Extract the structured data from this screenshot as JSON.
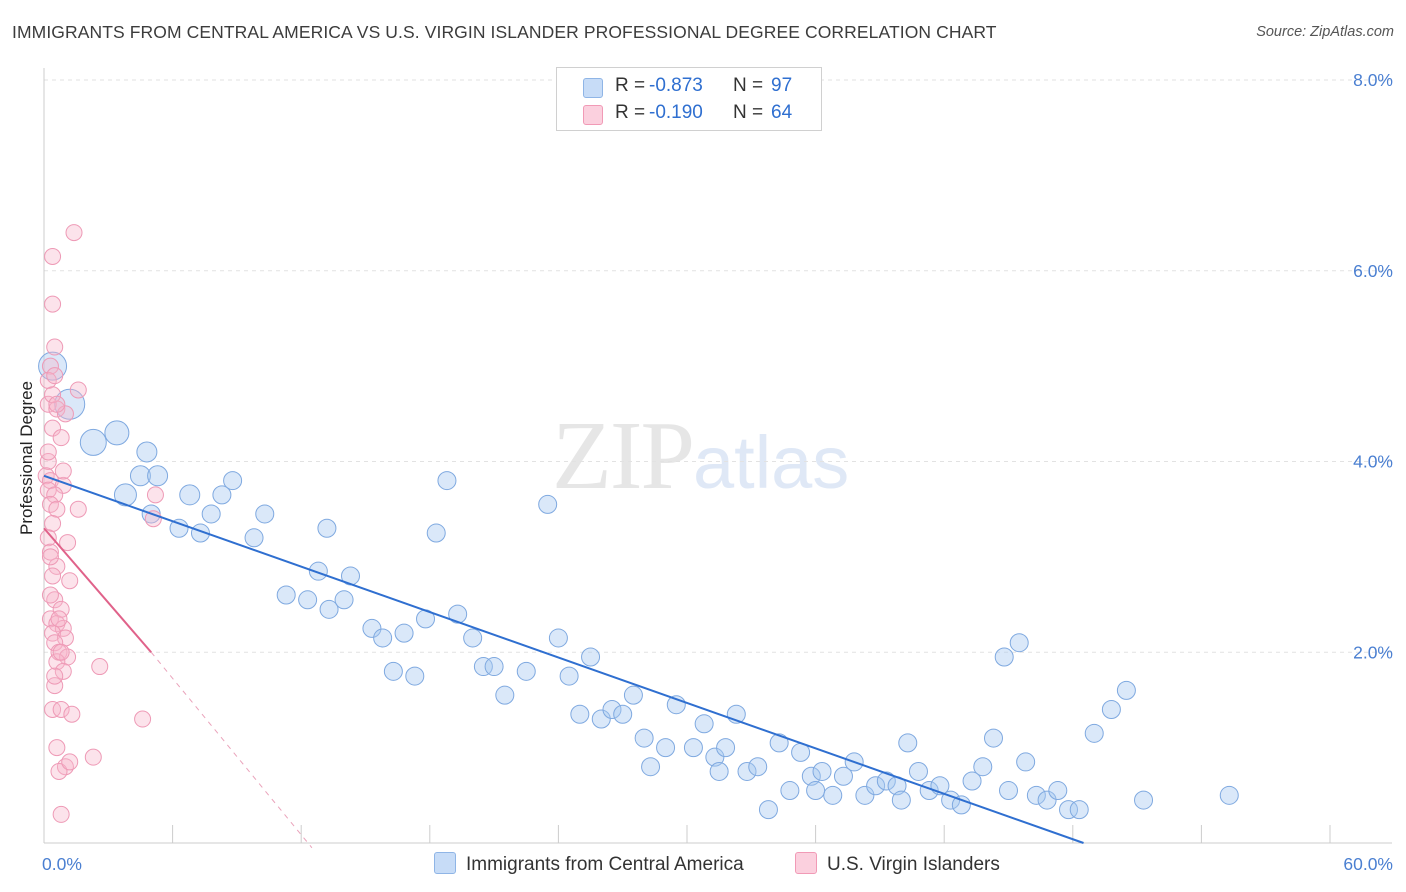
{
  "header": {
    "title": "IMMIGRANTS FROM CENTRAL AMERICA VS U.S. VIRGIN ISLANDER PROFESSIONAL DEGREE CORRELATION CHART",
    "source": "Source: ZipAtlas.com"
  },
  "watermark": {
    "zip": "ZIP",
    "atlas": "atlas"
  },
  "legend": {
    "rows": [
      {
        "r_label": "R =",
        "r_value": "-0.873",
        "n_label": "N =",
        "n_value": "97",
        "color": "#a8c8f0"
      },
      {
        "r_label": "R =",
        "r_value": "-0.190",
        "n_label": "N =",
        "n_value": "64",
        "color": "#f7b6cb"
      }
    ]
  },
  "bottom_legend": {
    "series1": "Immigrants from Central America",
    "series2": "U.S. Virgin Islanders"
  },
  "chart_data": {
    "type": "scatter",
    "title": "IMMIGRANTS FROM CENTRAL AMERICA VS U.S. VIRGIN ISLANDER PROFESSIONAL DEGREE CORRELATION CHART",
    "xlabel": "",
    "ylabel": "Professional Degree",
    "xlim": [
      0,
      60
    ],
    "ylim": [
      0,
      8.0
    ],
    "x_tick_labels": [
      "0.0%",
      "60.0%"
    ],
    "y_tick_labels": [
      "2.0%",
      "4.0%",
      "6.0%",
      "8.0%"
    ],
    "y_ticks": [
      2,
      4,
      6,
      8
    ],
    "grid": true,
    "legend_position": "top-center",
    "colors": {
      "series1": "#a8c8f0",
      "series1_line": "#2f6fd0",
      "series2": "#f7b6cb",
      "series2_line": "#e0628a"
    },
    "series": [
      {
        "name": "Immigrants from Central America",
        "r": -0.873,
        "n": 97,
        "trend": {
          "x0": 0,
          "y0": 3.85,
          "x1": 48.5,
          "y1": 0.0
        },
        "points": [
          [
            0.4,
            5.0,
            14
          ],
          [
            1.2,
            4.6,
            15
          ],
          [
            2.3,
            4.2,
            13
          ],
          [
            3.4,
            4.3,
            12
          ],
          [
            4.8,
            4.1,
            10
          ],
          [
            3.8,
            3.65,
            11
          ],
          [
            4.5,
            3.85,
            10
          ],
          [
            5.3,
            3.85,
            10
          ],
          [
            5.0,
            3.45,
            9
          ],
          [
            6.3,
            3.3,
            9
          ],
          [
            6.8,
            3.65,
            10
          ],
          [
            7.3,
            3.25,
            9
          ],
          [
            7.8,
            3.45,
            9
          ],
          [
            8.3,
            3.65,
            9
          ],
          [
            8.8,
            3.8,
            9
          ],
          [
            9.8,
            3.2,
            9
          ],
          [
            10.3,
            3.45,
            9
          ],
          [
            11.3,
            2.6,
            9
          ],
          [
            12.3,
            2.55,
            9
          ],
          [
            12.8,
            2.85,
            9
          ],
          [
            13.3,
            2.45,
            9
          ],
          [
            14.0,
            2.55,
            9
          ],
          [
            14.3,
            2.8,
            9
          ],
          [
            15.3,
            2.25,
            9
          ],
          [
            15.8,
            2.15,
            9
          ],
          [
            13.2,
            3.3,
            9
          ],
          [
            16.3,
            1.8,
            9
          ],
          [
            16.8,
            2.2,
            9
          ],
          [
            17.8,
            2.35,
            9
          ],
          [
            17.3,
            1.75,
            9
          ],
          [
            18.3,
            3.25,
            9
          ],
          [
            19.3,
            2.4,
            9
          ],
          [
            18.8,
            3.8,
            9
          ],
          [
            20.0,
            2.15,
            9
          ],
          [
            20.5,
            1.85,
            9
          ],
          [
            21.0,
            1.85,
            9
          ],
          [
            21.5,
            1.55,
            9
          ],
          [
            22.5,
            1.8,
            9
          ],
          [
            23.5,
            3.55,
            9
          ],
          [
            24.0,
            2.15,
            9
          ],
          [
            24.5,
            1.75,
            9
          ],
          [
            25.0,
            1.35,
            9
          ],
          [
            25.5,
            1.95,
            9
          ],
          [
            26.0,
            1.3,
            9
          ],
          [
            26.5,
            1.4,
            9
          ],
          [
            27.0,
            1.35,
            9
          ],
          [
            27.5,
            1.55,
            9
          ],
          [
            28.0,
            1.1,
            9
          ],
          [
            28.3,
            0.8,
            9
          ],
          [
            29.0,
            1.0,
            9
          ],
          [
            29.5,
            1.45,
            9
          ],
          [
            30.3,
            1.0,
            9
          ],
          [
            30.8,
            1.25,
            9
          ],
          [
            31.3,
            0.9,
            9
          ],
          [
            31.8,
            1.0,
            9
          ],
          [
            32.3,
            1.35,
            9
          ],
          [
            32.8,
            0.75,
            9
          ],
          [
            33.3,
            0.8,
            9
          ],
          [
            33.8,
            0.35,
            9
          ],
          [
            34.3,
            1.05,
            9
          ],
          [
            34.8,
            0.55,
            9
          ],
          [
            35.3,
            0.95,
            9
          ],
          [
            35.8,
            0.7,
            9
          ],
          [
            36.3,
            0.75,
            9
          ],
          [
            36.8,
            0.5,
            9
          ],
          [
            37.3,
            0.7,
            9
          ],
          [
            37.8,
            0.85,
            9
          ],
          [
            38.3,
            0.5,
            9
          ],
          [
            38.8,
            0.6,
            9
          ],
          [
            39.3,
            0.65,
            9
          ],
          [
            39.8,
            0.6,
            9
          ],
          [
            40.3,
            1.05,
            9
          ],
          [
            40.8,
            0.75,
            9
          ],
          [
            41.3,
            0.55,
            9
          ],
          [
            41.8,
            0.6,
            9
          ],
          [
            42.3,
            0.45,
            9
          ],
          [
            42.8,
            0.4,
            9
          ],
          [
            43.3,
            0.65,
            9
          ],
          [
            43.8,
            0.8,
            9
          ],
          [
            44.3,
            1.1,
            9
          ],
          [
            44.8,
            1.95,
            9
          ],
          [
            45.5,
            2.1,
            9
          ],
          [
            45.8,
            0.85,
            9
          ],
          [
            46.3,
            0.5,
            9
          ],
          [
            46.8,
            0.45,
            9
          ],
          [
            47.3,
            0.55,
            9
          ],
          [
            47.8,
            0.35,
            9
          ],
          [
            48.3,
            0.35,
            9
          ],
          [
            49.0,
            1.15,
            9
          ],
          [
            49.8,
            1.4,
            9
          ],
          [
            50.5,
            1.6,
            9
          ],
          [
            51.3,
            0.45,
            9
          ],
          [
            55.3,
            0.5,
            9
          ],
          [
            45.0,
            0.55,
            9
          ],
          [
            40.0,
            0.45,
            9
          ],
          [
            36.0,
            0.55,
            9
          ],
          [
            31.5,
            0.75,
            9
          ]
        ]
      },
      {
        "name": "U.S. Virgin Islanders",
        "r": -0.19,
        "n": 64,
        "trend": {
          "x0": 0,
          "y0": 3.3,
          "x1": 5.0,
          "y1": 2.0,
          "dash_x1": 12.5,
          "dash_y1": -0.05
        },
        "points": [
          [
            1.4,
            6.4,
            8
          ],
          [
            0.4,
            6.15,
            8
          ],
          [
            0.4,
            5.65,
            8
          ],
          [
            0.5,
            5.2,
            8
          ],
          [
            0.3,
            5.0,
            8
          ],
          [
            0.2,
            4.85,
            8
          ],
          [
            0.5,
            4.9,
            8
          ],
          [
            1.6,
            4.75,
            8
          ],
          [
            0.2,
            4.6,
            8
          ],
          [
            0.6,
            4.55,
            8
          ],
          [
            1.0,
            4.5,
            8
          ],
          [
            0.4,
            4.35,
            8
          ],
          [
            0.8,
            4.25,
            8
          ],
          [
            0.2,
            4.0,
            8
          ],
          [
            0.1,
            3.85,
            8
          ],
          [
            0.3,
            3.8,
            8
          ],
          [
            0.9,
            3.75,
            8
          ],
          [
            0.2,
            3.7,
            8
          ],
          [
            0.5,
            3.65,
            8
          ],
          [
            5.2,
            3.65,
            8
          ],
          [
            0.3,
            3.55,
            8
          ],
          [
            0.6,
            3.5,
            8
          ],
          [
            1.6,
            3.5,
            8
          ],
          [
            5.1,
            3.4,
            8
          ],
          [
            0.4,
            3.35,
            8
          ],
          [
            0.2,
            3.2,
            8
          ],
          [
            1.1,
            3.15,
            8
          ],
          [
            0.3,
            3.05,
            8
          ],
          [
            0.6,
            2.9,
            8
          ],
          [
            0.4,
            2.8,
            8
          ],
          [
            1.2,
            2.75,
            8
          ],
          [
            0.5,
            2.55,
            8
          ],
          [
            0.8,
            2.45,
            8
          ],
          [
            0.3,
            2.35,
            8
          ],
          [
            0.6,
            2.3,
            8
          ],
          [
            0.9,
            2.25,
            8
          ],
          [
            0.4,
            2.2,
            8
          ],
          [
            1.0,
            2.15,
            8
          ],
          [
            0.5,
            2.1,
            8
          ],
          [
            0.7,
            2.0,
            8
          ],
          [
            1.1,
            1.95,
            8
          ],
          [
            0.6,
            1.9,
            8
          ],
          [
            2.6,
            1.85,
            8
          ],
          [
            0.9,
            1.8,
            8
          ],
          [
            0.5,
            1.65,
            8
          ],
          [
            0.4,
            1.4,
            8
          ],
          [
            0.8,
            1.4,
            8
          ],
          [
            1.3,
            1.35,
            8
          ],
          [
            4.6,
            1.3,
            8
          ],
          [
            0.6,
            1.0,
            8
          ],
          [
            2.3,
            0.9,
            8
          ],
          [
            1.0,
            0.8,
            8
          ],
          [
            0.7,
            0.75,
            8
          ],
          [
            0.8,
            0.3,
            8
          ],
          [
            0.3,
            3.0,
            8
          ],
          [
            0.7,
            2.35,
            8
          ],
          [
            0.2,
            4.1,
            8
          ],
          [
            0.9,
            3.9,
            8
          ],
          [
            0.4,
            4.7,
            8
          ],
          [
            0.6,
            4.6,
            8
          ],
          [
            1.2,
            0.85,
            8
          ],
          [
            0.5,
            1.75,
            8
          ],
          [
            0.3,
            2.6,
            8
          ],
          [
            0.8,
            2.0,
            8
          ]
        ]
      }
    ]
  }
}
